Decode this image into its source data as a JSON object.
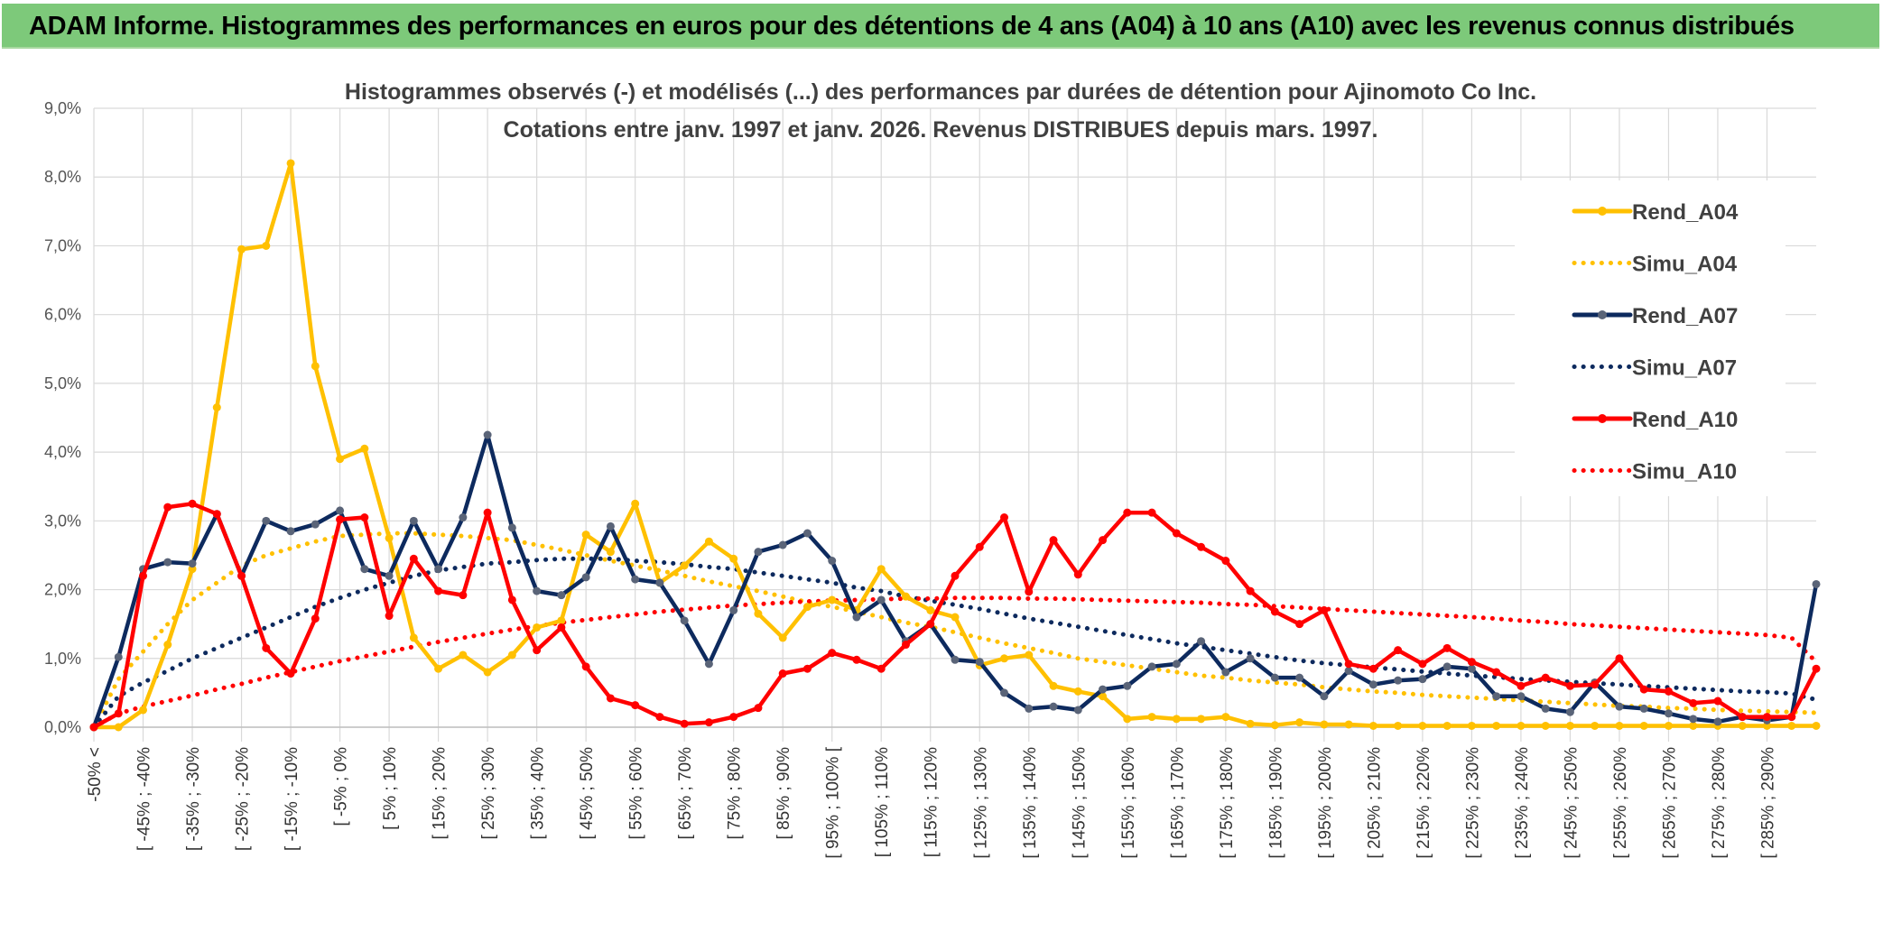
{
  "banner": {
    "title": "ADAM Informe. Histogrammes des performances en euros pour des détentions de 4 ans (A04) à 10 ans (A10) avec les revenus connus distribués"
  },
  "colors": {
    "banner_bg": "#7dc97a",
    "A04": "#ffc000",
    "A07": "#0d2a5e",
    "A10": "#ff0000"
  },
  "chart_data": {
    "type": "line",
    "title_line1": "Histogrammes observés (-) et modélisés (...) des performances par durées de détention pour Ajinomoto Co Inc.",
    "title_line2": "Cotations entre janv. 1997 et janv. 2026. Revenus DISTRIBUES depuis mars. 1997.",
    "grid": true,
    "legend_position": "right",
    "ylim": [
      0,
      9
    ],
    "y_ticks": [
      "0,0%",
      "1,0%",
      "2,0%",
      "3,0%",
      "4,0%",
      "5,0%",
      "6,0%",
      "7,0%",
      "8,0%",
      "9,0%"
    ],
    "x_tick_labels": [
      "-50% <",
      "[ -45% ; -40%",
      "[ -35% ; -30%",
      "[ -25% ; -20%",
      "[ -15% ; -10%",
      "[ -5% ; 0%",
      "[ 5% ; 10%",
      "[ 15% ; 20%",
      "[ 25% ; 30%",
      "[ 35% ; 40%",
      "[ 45% ; 50%",
      "[ 55% ; 60%",
      "[ 65% ; 70%",
      "[ 75% ; 80%",
      "[ 85% ; 90%",
      "[ 95% ; 100% [",
      "[ 105% ; 110%",
      "[ 115% ; 120%",
      "[ 125% ; 130%",
      "[ 135% ; 140%",
      "[ 145% ; 150%",
      "[ 155% ; 160%",
      "[ 165% ; 170%",
      "[ 175% ; 180%",
      "[ 185% ; 190%",
      "[ 195% ; 200%",
      "[ 205% ; 210%",
      "[ 215% ; 220%",
      "[ 225% ; 230%",
      "[ 235% ; 240%",
      "[ 245% ; 250%",
      "[ 255% ; 260%",
      "[ 265% ; 270%",
      "[ 275% ; 280%",
      "[ 285% ; 290%"
    ],
    "series": [
      {
        "name": "Rend_A04",
        "style": "solid",
        "markers": true,
        "color": "#ffc000",
        "values": [
          0.0,
          0.0,
          0.25,
          1.2,
          2.3,
          4.65,
          6.95,
          7.0,
          8.2,
          5.25,
          3.9,
          4.05,
          2.75,
          1.3,
          0.85,
          1.05,
          0.8,
          1.05,
          1.45,
          1.55,
          2.8,
          2.55,
          3.25,
          2.1,
          2.35,
          2.7,
          2.45,
          1.65,
          1.3,
          1.75,
          1.85,
          1.7,
          2.3,
          1.9,
          1.7,
          1.6,
          0.9,
          1.0,
          1.05,
          0.6,
          0.52,
          0.45,
          0.12,
          0.15,
          0.12,
          0.12,
          0.15,
          0.05,
          0.03,
          0.07,
          0.04,
          0.04,
          0.02,
          0.02,
          0.02,
          0.02,
          0.02,
          0.02,
          0.02,
          0.02,
          0.02,
          0.02,
          0.02,
          0.02,
          0.02,
          0.02,
          0.02,
          0.02,
          0.02,
          0.02,
          0.02
        ]
      },
      {
        "name": "Simu_A04",
        "style": "dotted",
        "markers": false,
        "color": "#ffc000",
        "values": [
          0.0,
          0.7,
          1.1,
          1.5,
          1.85,
          2.1,
          2.35,
          2.5,
          2.6,
          2.7,
          2.78,
          2.8,
          2.82,
          2.82,
          2.8,
          2.78,
          2.75,
          2.72,
          2.65,
          2.58,
          2.5,
          2.42,
          2.35,
          2.28,
          2.2,
          2.12,
          2.05,
          1.98,
          1.9,
          1.82,
          1.75,
          1.68,
          1.6,
          1.52,
          1.46,
          1.38,
          1.3,
          1.22,
          1.15,
          1.08,
          1.0,
          0.95,
          0.9,
          0.85,
          0.8,
          0.75,
          0.72,
          0.68,
          0.65,
          0.62,
          0.58,
          0.55,
          0.52,
          0.5,
          0.47,
          0.45,
          0.43,
          0.41,
          0.39,
          0.37,
          0.35,
          0.33,
          0.31,
          0.3,
          0.28,
          0.27,
          0.25,
          0.24,
          0.23,
          0.22,
          0.21
        ]
      },
      {
        "name": "Rend_A07",
        "style": "solid",
        "markers": true,
        "color": "#0d2a5e",
        "values": [
          0.0,
          1.02,
          2.3,
          2.4,
          2.38,
          3.1,
          2.2,
          3.0,
          2.85,
          2.95,
          3.15,
          2.3,
          2.2,
          3.0,
          2.3,
          3.05,
          4.25,
          2.9,
          1.98,
          1.92,
          2.18,
          2.92,
          2.15,
          2.1,
          1.55,
          0.92,
          1.7,
          2.55,
          2.65,
          2.82,
          2.42,
          1.6,
          1.85,
          1.25,
          1.5,
          0.98,
          0.95,
          0.5,
          0.27,
          0.3,
          0.25,
          0.55,
          0.6,
          0.88,
          0.92,
          1.25,
          0.8,
          1.0,
          0.72,
          0.72,
          0.45,
          0.82,
          0.62,
          0.68,
          0.7,
          0.88,
          0.85,
          0.45,
          0.45,
          0.27,
          0.22,
          0.65,
          0.3,
          0.27,
          0.2,
          0.12,
          0.08,
          0.15,
          0.1,
          0.15,
          2.08
        ]
      },
      {
        "name": "Simu_A07",
        "style": "dotted",
        "markers": false,
        "color": "#0d2a5e",
        "values": [
          0.0,
          0.45,
          0.65,
          0.82,
          1.0,
          1.15,
          1.3,
          1.45,
          1.6,
          1.75,
          1.88,
          2.0,
          2.1,
          2.2,
          2.28,
          2.33,
          2.38,
          2.4,
          2.43,
          2.45,
          2.45,
          2.45,
          2.42,
          2.4,
          2.37,
          2.33,
          2.3,
          2.25,
          2.2,
          2.15,
          2.1,
          2.03,
          1.98,
          1.9,
          1.84,
          1.78,
          1.72,
          1.65,
          1.58,
          1.52,
          1.46,
          1.4,
          1.34,
          1.28,
          1.22,
          1.17,
          1.12,
          1.07,
          1.02,
          0.97,
          0.93,
          0.9,
          0.87,
          0.84,
          0.81,
          0.78,
          0.75,
          0.73,
          0.7,
          0.68,
          0.66,
          0.64,
          0.62,
          0.6,
          0.58,
          0.56,
          0.54,
          0.52,
          0.51,
          0.49,
          0.4
        ]
      },
      {
        "name": "Rend_A10",
        "style": "solid",
        "markers": true,
        "color": "#ff0000",
        "values": [
          0.0,
          0.2,
          2.2,
          3.2,
          3.25,
          3.1,
          2.2,
          1.15,
          0.78,
          1.58,
          3.02,
          3.05,
          1.62,
          2.45,
          1.98,
          1.92,
          3.12,
          1.85,
          1.12,
          1.45,
          0.88,
          0.42,
          0.32,
          0.15,
          0.05,
          0.07,
          0.15,
          0.28,
          0.78,
          0.85,
          1.08,
          0.98,
          0.85,
          1.2,
          1.5,
          2.2,
          2.62,
          3.05,
          1.97,
          2.72,
          2.22,
          2.72,
          3.12,
          3.12,
          2.82,
          2.62,
          2.42,
          1.98,
          1.68,
          1.5,
          1.7,
          0.92,
          0.85,
          1.12,
          0.92,
          1.15,
          0.95,
          0.8,
          0.6,
          0.72,
          0.6,
          0.62,
          1.0,
          0.55,
          0.52,
          0.35,
          0.38,
          0.15,
          0.15,
          0.15,
          0.85
        ]
      },
      {
        "name": "Simu_A10",
        "style": "dotted",
        "markers": false,
        "color": "#ff0000",
        "values": [
          0.0,
          0.2,
          0.3,
          0.38,
          0.46,
          0.55,
          0.63,
          0.72,
          0.8,
          0.88,
          0.96,
          1.03,
          1.1,
          1.17,
          1.24,
          1.3,
          1.36,
          1.42,
          1.47,
          1.52,
          1.56,
          1.6,
          1.64,
          1.68,
          1.71,
          1.74,
          1.77,
          1.79,
          1.81,
          1.83,
          1.84,
          1.85,
          1.86,
          1.87,
          1.87,
          1.88,
          1.88,
          1.88,
          1.87,
          1.87,
          1.86,
          1.85,
          1.84,
          1.83,
          1.82,
          1.81,
          1.79,
          1.78,
          1.76,
          1.74,
          1.72,
          1.7,
          1.68,
          1.66,
          1.64,
          1.62,
          1.6,
          1.58,
          1.55,
          1.53,
          1.5,
          1.48,
          1.46,
          1.44,
          1.42,
          1.4,
          1.38,
          1.36,
          1.34,
          1.3,
          0.95
        ]
      }
    ]
  }
}
